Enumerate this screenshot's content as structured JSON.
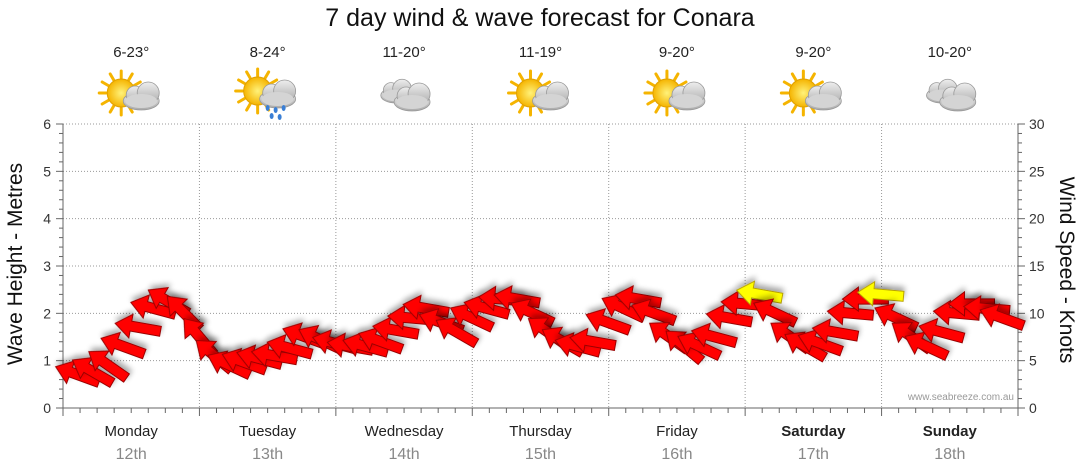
{
  "chart_data": {
    "type": "line",
    "title": "7 day wind & wave forecast for Conara",
    "ylabel_left": "Wave Height - Metres",
    "ylabel_right": "Wind Speed - Knots",
    "ylim_left": [
      0,
      6
    ],
    "ylim_right": [
      0,
      30
    ],
    "yticks_left": [
      "0",
      "1",
      "2",
      "3",
      "4",
      "5",
      "6"
    ],
    "yticks_right": [
      "0",
      "5",
      "10",
      "15",
      "20",
      "25",
      "30"
    ],
    "grid": true,
    "credit": "www.seabreeze.com.au",
    "days": [
      {
        "day": "Monday",
        "date": "12th",
        "bold": false,
        "temp": "6-23°",
        "weather": "partly-cloudy-icon"
      },
      {
        "day": "Tuesday",
        "date": "13th",
        "bold": false,
        "temp": "8-24°",
        "weather": "showers-icon"
      },
      {
        "day": "Wednesday",
        "date": "14th",
        "bold": false,
        "temp": "11-20°",
        "weather": "cloudy-icon"
      },
      {
        "day": "Thursday",
        "date": "15th",
        "bold": false,
        "temp": "11-19°",
        "weather": "partly-cloudy-icon"
      },
      {
        "day": "Friday",
        "date": "16th",
        "bold": false,
        "temp": "9-20°",
        "weather": "partly-cloudy-icon"
      },
      {
        "day": "Saturday",
        "date": "17th",
        "bold": true,
        "temp": "9-20°",
        "weather": "partly-cloudy-icon"
      },
      {
        "day": "Sunday",
        "date": "18th",
        "bold": true,
        "temp": "10-20°",
        "weather": "cloudy-icon"
      }
    ],
    "series": [
      {
        "name": "Wind Speed",
        "unit": "knots",
        "step_hours": 3,
        "values": [
          3.5,
          3.8,
          4.5,
          6.5,
          8.5,
          10.5,
          11.2,
          10,
          7.5,
          5.5,
          4.5,
          4.8,
          5.2,
          5.5,
          6.3,
          7.5,
          7.2,
          6.8,
          6.5,
          6.5,
          7.0,
          8.2,
          9.5,
          10.5,
          9.0,
          8.0,
          9.5,
          10.5,
          11.5,
          11.5,
          10.0,
          8.0,
          7.0,
          6.5,
          7.0,
          9.0,
          10.5,
          11.5,
          10.0,
          7.5,
          6.5,
          6.5,
          7.5,
          9.5,
          11.0,
          12.0,
          10.0,
          7.5,
          6.5,
          6.8,
          8.0,
          10.0,
          11.5,
          12.0,
          9.5,
          7.5,
          6.5,
          8.0,
          10.0,
          11.0,
          10.5,
          9.5
        ]
      }
    ],
    "colors": {
      "normal": "#ff0000",
      "strong": "#ffff00",
      "outline": "#990000"
    }
  }
}
